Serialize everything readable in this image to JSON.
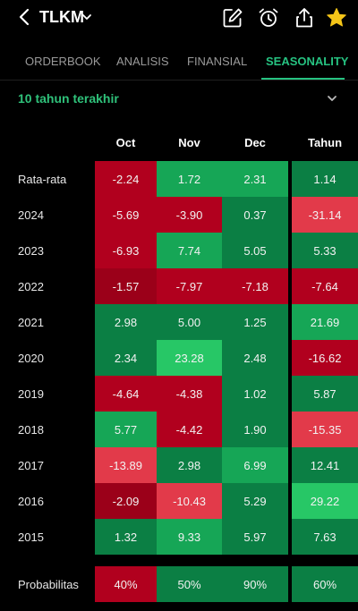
{
  "header": {
    "ticker": "TLKM",
    "icons": [
      "back-icon",
      "edit-note-icon",
      "alarm-icon",
      "share-icon",
      "star-icon"
    ]
  },
  "tabs": [
    {
      "label": "ORDERBOOK",
      "active": false
    },
    {
      "label": "ANALISIS",
      "active": false
    },
    {
      "label": "FINANSIAL",
      "active": false
    },
    {
      "label": "SEASONALITY",
      "active": true
    }
  ],
  "period": {
    "selected": "10 tahun terakhir"
  },
  "colors": {
    "accent": "#26c281",
    "strong_red": "#b1001e",
    "red": "#e23a4a",
    "bright_green": "#27c766",
    "green": "#16a656",
    "dark_green": "#0b7f44"
  },
  "table": {
    "columns": [
      "Oct",
      "Nov",
      "Dec",
      "Tahun"
    ],
    "rows": [
      {
        "label": "Rata-rata",
        "values": [
          "-2.24",
          "1.72",
          "2.31",
          "1.14"
        ]
      },
      {
        "label": "2024",
        "values": [
          "-5.69",
          "-3.90",
          "0.37",
          "-31.14"
        ]
      },
      {
        "label": "2023",
        "values": [
          "-6.93",
          "7.74",
          "5.05",
          "5.33"
        ]
      },
      {
        "label": "2022",
        "values": [
          "-1.57",
          "-7.97",
          "-7.18",
          "-7.64"
        ]
      },
      {
        "label": "2021",
        "values": [
          "2.98",
          "5.00",
          "1.25",
          "21.69"
        ]
      },
      {
        "label": "2020",
        "values": [
          "2.34",
          "23.28",
          "2.48",
          "-16.62"
        ]
      },
      {
        "label": "2019",
        "values": [
          "-4.64",
          "-4.38",
          "1.02",
          "5.87"
        ]
      },
      {
        "label": "2018",
        "values": [
          "5.77",
          "-4.42",
          "1.90",
          "-15.35"
        ]
      },
      {
        "label": "2017",
        "values": [
          "-13.89",
          "2.98",
          "6.99",
          "12.41"
        ]
      },
      {
        "label": "2016",
        "values": [
          "-2.09",
          "-10.43",
          "5.29",
          "29.22"
        ]
      },
      {
        "label": "2015",
        "values": [
          "1.32",
          "9.33",
          "5.97",
          "7.63"
        ]
      }
    ],
    "probability": {
      "label": "Probabilitas",
      "values": [
        "40%",
        "50%",
        "90%",
        "60%"
      ]
    }
  }
}
